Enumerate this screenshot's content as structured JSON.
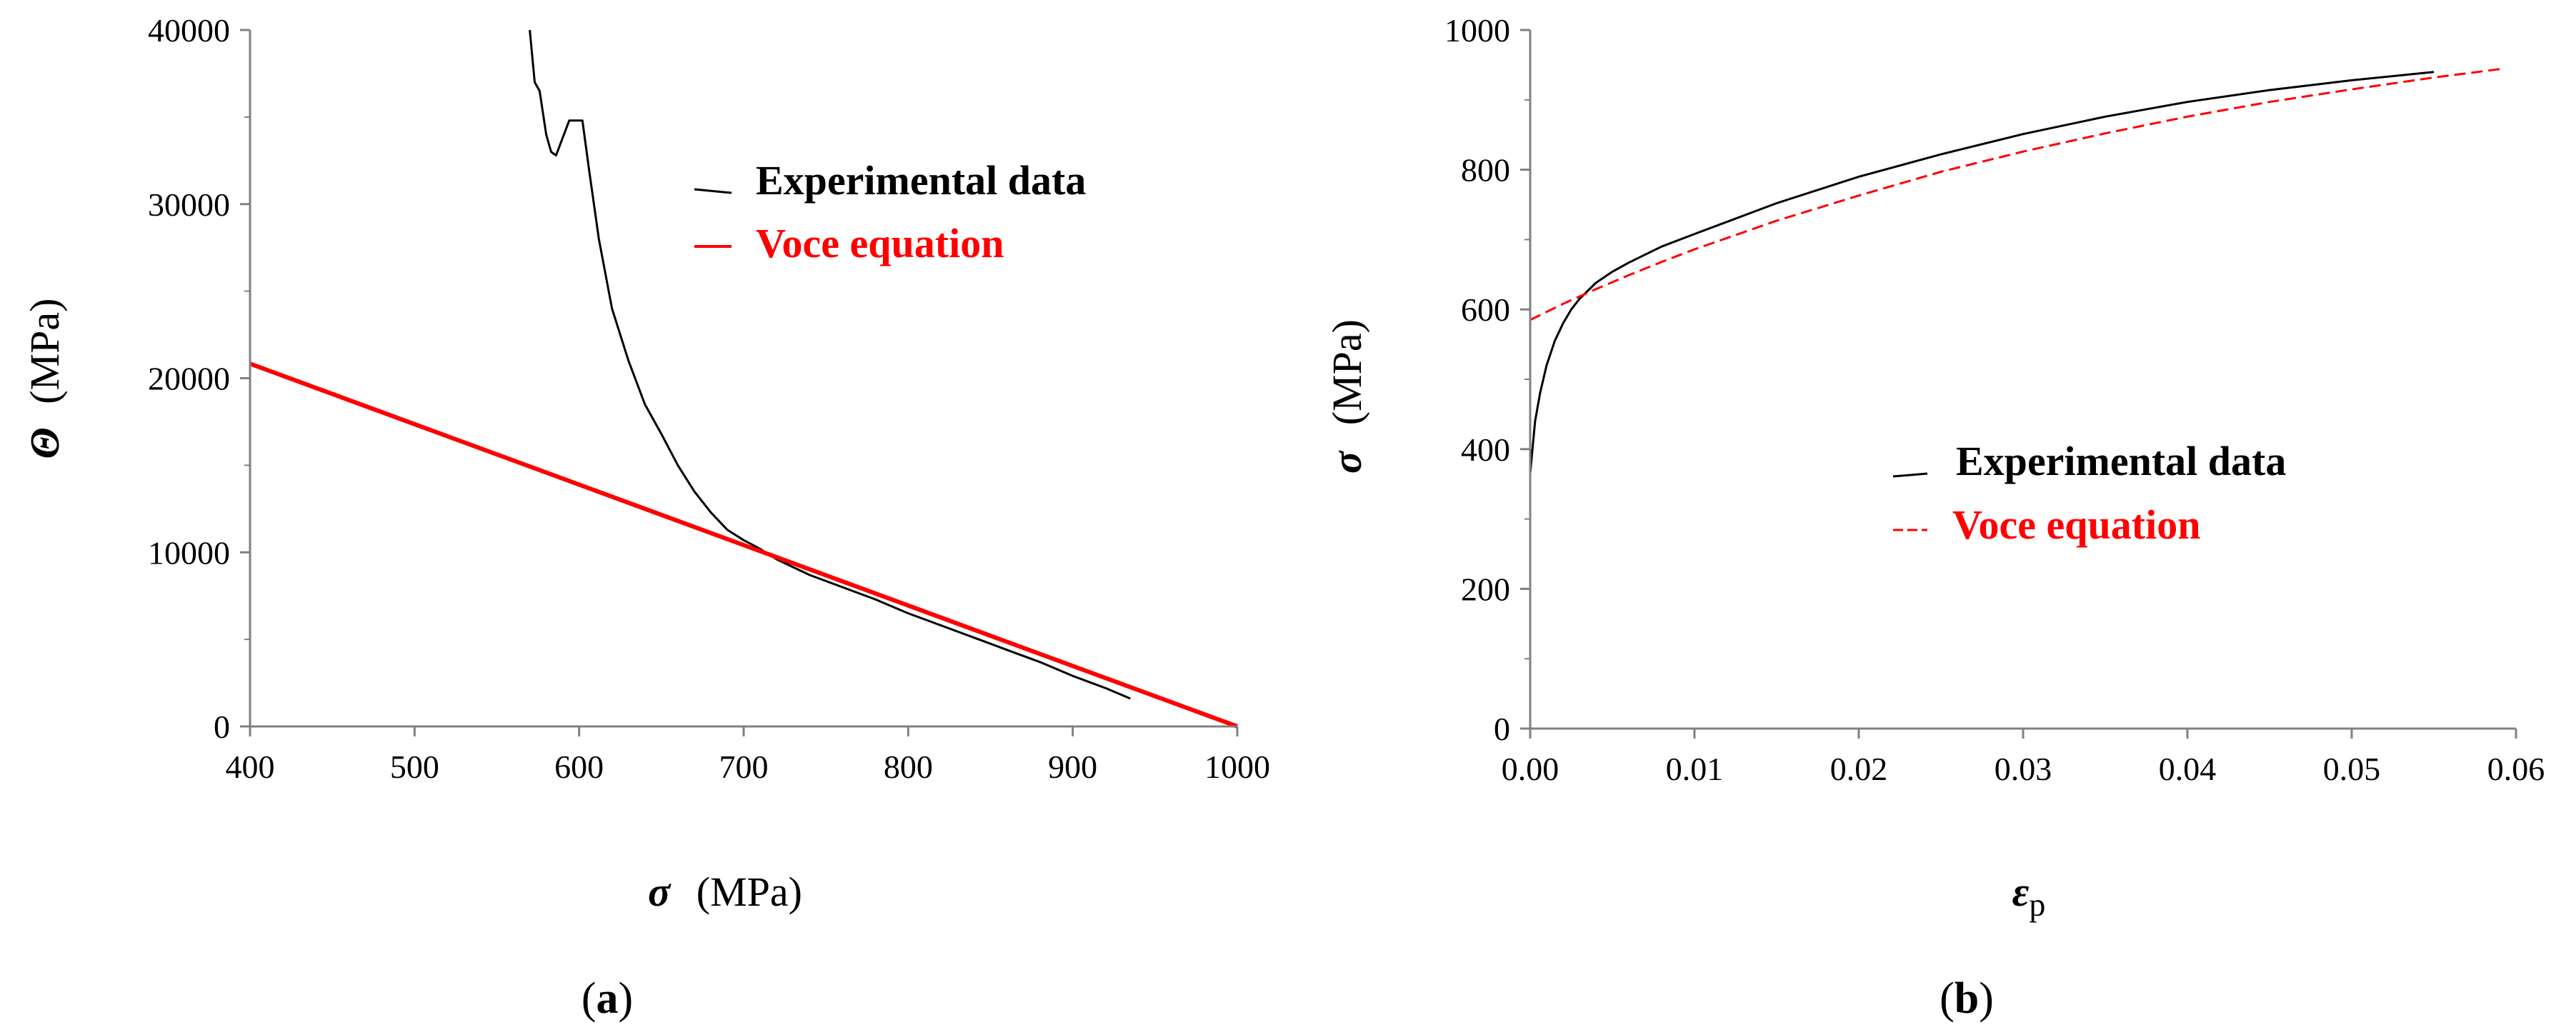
{
  "chart_data": [
    {
      "id": "a",
      "type": "line",
      "panel_label": "(a)",
      "panel_label_open": "(",
      "panel_label_letter": "a",
      "panel_label_close": ")",
      "xlabel_symbol": "σ",
      "xlabel_unit": "(MPa)",
      "ylabel_symbol": "Θ",
      "ylabel_unit": "(MPa)",
      "xlim": [
        400,
        1000
      ],
      "ylim": [
        0,
        40000
      ],
      "xticks": [
        400,
        500,
        600,
        700,
        800,
        900,
        1000
      ],
      "yticks": [
        0,
        10000,
        20000,
        30000,
        40000
      ],
      "legend_position": "top-right",
      "series": [
        {
          "name": "Experimental data",
          "color": "#000000",
          "style": "solid",
          "x": [
            570,
            573,
            576,
            580,
            583,
            586,
            590,
            594,
            598,
            602,
            606,
            612,
            620,
            630,
            640,
            650,
            660,
            670,
            680,
            690,
            700,
            710,
            720,
            740,
            760,
            780,
            800,
            820,
            840,
            860,
            880,
            900,
            920,
            935
          ],
          "y": [
            40000,
            37000,
            36500,
            34000,
            33000,
            32800,
            33800,
            34800,
            34800,
            34800,
            32000,
            28000,
            24000,
            21000,
            18500,
            16800,
            15000,
            13500,
            12300,
            11300,
            10700,
            10200,
            9600,
            8700,
            8000,
            7300,
            6500,
            5800,
            5100,
            4400,
            3700,
            2900,
            2200,
            1600
          ]
        },
        {
          "name": "Voce equation",
          "color": "#ff0000",
          "style": "solid",
          "x": [
            400,
            1000
          ],
          "y": [
            20833,
            0
          ]
        }
      ]
    },
    {
      "id": "b",
      "type": "line",
      "panel_label": "(b)",
      "panel_label_open": "(",
      "panel_label_letter": "b",
      "panel_label_close": ")",
      "xlabel_symbol": "ε",
      "xlabel_sub": "p",
      "ylabel_symbol": "σ",
      "ylabel_unit": "(MPa)",
      "xlim": [
        0,
        0.06
      ],
      "ylim": [
        0,
        1000
      ],
      "xticks": [
        "0.00",
        "0.01",
        "0.02",
        "0.03",
        "0.04",
        "0.05",
        "0.06"
      ],
      "yticks": [
        0,
        200,
        400,
        600,
        800,
        1000
      ],
      "legend_position": "center-right",
      "series": [
        {
          "name": "Experimental data",
          "color": "#000000",
          "style": "solid",
          "x": [
            0.0,
            0.0003,
            0.0006,
            0.001,
            0.0015,
            0.002,
            0.0025,
            0.003,
            0.004,
            0.005,
            0.006,
            0.008,
            0.01,
            0.015,
            0.02,
            0.025,
            0.03,
            0.035,
            0.04,
            0.045,
            0.05,
            0.055
          ],
          "y": [
            365,
            440,
            480,
            520,
            555,
            580,
            600,
            615,
            638,
            654,
            667,
            690,
            708,
            752,
            790,
            822,
            851,
            876,
            897,
            914,
            928,
            940
          ]
        },
        {
          "name": "Voce equation",
          "color": "#ff0000",
          "style": "dashed",
          "x": [
            0.0,
            0.002,
            0.004,
            0.006,
            0.008,
            0.01,
            0.015,
            0.02,
            0.025,
            0.03,
            0.035,
            0.04,
            0.045,
            0.05,
            0.055,
            0.059
          ],
          "y": [
            585,
            608,
            629,
            649,
            668,
            686,
            727,
            763,
            797,
            826,
            852,
            876,
            897,
            915,
            932,
            944
          ]
        }
      ]
    }
  ]
}
